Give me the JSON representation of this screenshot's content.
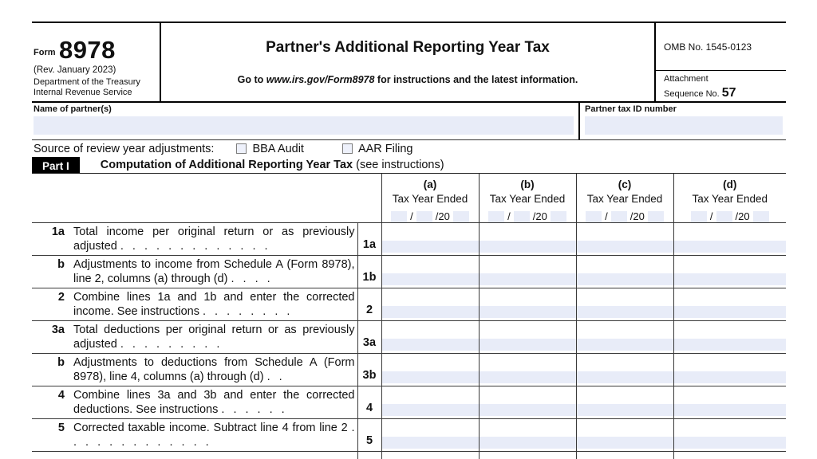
{
  "header": {
    "form_word": "Form",
    "form_number": "8978",
    "revision": "(Rev. January 2023)",
    "agency_line1": "Department of the Treasury",
    "agency_line2": "Internal Revenue Service",
    "title": "Partner's Additional Reporting Year Tax",
    "goto_prefix": "Go to ",
    "goto_url": "www.irs.gov/Form8978",
    "goto_suffix": " for instructions and the latest information.",
    "omb": "OMB No. 1545-0123",
    "attachment_line1": "Attachment",
    "attachment_line2": "Sequence No. ",
    "attachment_number": "57"
  },
  "partner": {
    "name_label": "Name of partner(s)",
    "name_value": "",
    "tin_label": "Partner tax ID number",
    "tin_value": ""
  },
  "source": {
    "label": "Source of review year adjustments:",
    "checkbox1_label": "BBA Audit",
    "checkbox2_label": "AAR Filing"
  },
  "part1": {
    "badge": "Part I",
    "title": "Computation of Additional Reporting Year Tax",
    "subtitle": " (see instructions)"
  },
  "table": {
    "sub_label": "Tax Year Ended",
    "sep1": "/",
    "sep2": "/20",
    "columns": [
      {
        "letter": "(a)"
      },
      {
        "letter": "(b)"
      },
      {
        "letter": "(c)"
      },
      {
        "letter": "(d)"
      }
    ],
    "rows": [
      {
        "num": "1a",
        "label": "Total income per original return or as previously adjusted",
        "dots": ". . . . . . . . . . . . .",
        "line_ref": "1a"
      },
      {
        "num": "b",
        "label": "Adjustments to income from Schedule A (Form 8978), line 2, columns (a) through (d)",
        "dots": ". . . .",
        "line_ref": "1b"
      },
      {
        "num": "2",
        "label": "Combine lines 1a and 1b and enter the corrected income. See instructions",
        "dots": ". . . . . . . .",
        "line_ref": "2"
      },
      {
        "num": "3a",
        "label": "Total deductions per original return or as previously adjusted",
        "dots": ". . . . . . . . .",
        "line_ref": "3a"
      },
      {
        "num": "b",
        "label": "Adjustments to deductions from Schedule A (Form 8978), line 4, columns (a) through (d)",
        "dots": ". .",
        "line_ref": "3b"
      },
      {
        "num": "4",
        "label": "Combine lines 3a and 3b and enter the corrected deductions. See instructions",
        "dots": ". . . . . .",
        "line_ref": "4"
      },
      {
        "num": "5",
        "label": "Corrected taxable income. Subtract line 4 from line 2",
        "dots": ". . . . . . . . . . . . .",
        "line_ref": "5"
      }
    ]
  },
  "colors": {
    "field_blue": "#e8ecf8",
    "bar_black": "#000000",
    "line_gray": "#3a3a3a"
  }
}
